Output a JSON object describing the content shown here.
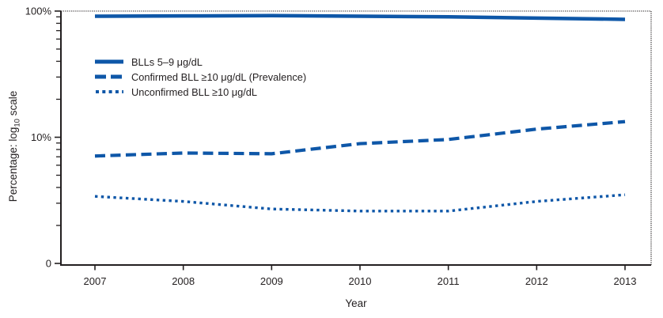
{
  "figure": {
    "background": "#ffffff",
    "accent_blue": "#0e57a8",
    "axis_color": "#231f20"
  },
  "chart_data": {
    "type": "line",
    "title": "",
    "x_label": "Year",
    "y_axis_title": {
      "prefix": "Percentage: log",
      "sub": "10",
      "suffix": " scale"
    },
    "y_scale": "log10",
    "y_axis_range_note": "100% at top to 1% at bottom, bottom tick labeled 0",
    "x": [
      2007,
      2008,
      2009,
      2010,
      2011,
      2012,
      2013
    ],
    "y_ticks": [
      {
        "label": "100%",
        "v": 100
      },
      {
        "label": "10%",
        "v": 10
      },
      {
        "label": "0",
        "v": 1
      }
    ],
    "y_minor_ticks": [
      90,
      80,
      70,
      60,
      50,
      40,
      30,
      20,
      9,
      8,
      7,
      6,
      5,
      4,
      3,
      2
    ],
    "series": [
      {
        "name": "BLLs 5–9 μg/dL",
        "line_style": "solid",
        "values": [
          91,
          91.5,
          92,
          91,
          90,
          88,
          86
        ]
      },
      {
        "name": "Confirmed BLL ≥10 μg/dL (Prevalence)",
        "line_style": "dashed",
        "values": [
          7.1,
          7.5,
          7.4,
          8.9,
          9.6,
          11.6,
          13.3
        ]
      },
      {
        "name": "Unconfirmed BLL ≥10 μg/dL",
        "line_style": "dotted",
        "values": [
          3.4,
          3.1,
          2.7,
          2.6,
          2.6,
          3.1,
          3.5
        ]
      }
    ],
    "legend_position": "upper-left-inside",
    "grid": "off"
  }
}
